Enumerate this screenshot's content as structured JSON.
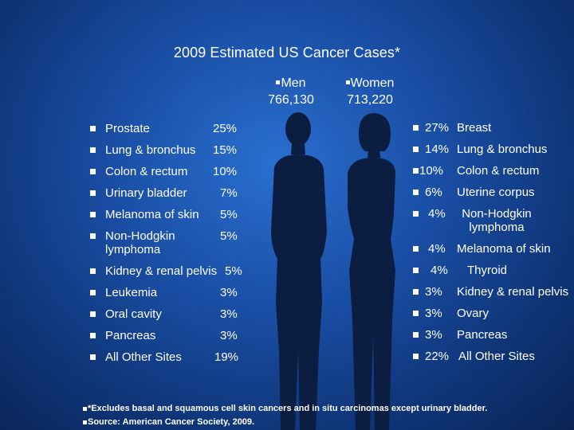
{
  "title": "2009 Estimated US Cancer Cases*",
  "men": {
    "label": "Men",
    "count": "766,130"
  },
  "women": {
    "label": "Women",
    "count": "713,220"
  },
  "men_rows": [
    {
      "site": "Prostate",
      "pct": "25%"
    },
    {
      "site": "Lung & bronchus",
      "pct": "15%"
    },
    {
      "site": "Colon & rectum",
      "pct": "10%"
    },
    {
      "site": "Urinary bladder",
      "pct": "7%"
    },
    {
      "site": "Melanoma of skin",
      "pct": "5%"
    },
    {
      "site": "Non-Hodgkin lymphoma",
      "pct": "5%"
    },
    {
      "site": "Kidney & renal pelvis",
      "pct": "5%"
    },
    {
      "site": "Leukemia",
      "pct": "3%"
    },
    {
      "site": "Oral cavity",
      "pct": "3%"
    },
    {
      "site": "Pancreas",
      "pct": "3%"
    },
    {
      "site": "All Other Sites",
      "pct": "19%"
    }
  ],
  "women_rows": [
    {
      "pct": "27%",
      "site": "Breast"
    },
    {
      "pct": "14%",
      "site": "Lung & bronchus"
    },
    {
      "pct": "10%",
      "site": "Colon & rectum"
    },
    {
      "pct": "6%",
      "site": "Uterine corpus"
    },
    {
      "pct": "4%",
      "site": "Non-Hodgkin lymphoma"
    },
    {
      "pct": "4%",
      "site": "Melanoma of skin"
    },
    {
      "pct": "4%",
      "site": "Thyroid"
    },
    {
      "pct": "3%",
      "site": "Kidney & renal pelvis"
    },
    {
      "pct": "3%",
      "site": "Ovary"
    },
    {
      "pct": "3%",
      "site": "Pancreas"
    },
    {
      "pct": "22%",
      "site": "All Other Sites"
    }
  ],
  "footnotes": [
    "*Excludes basal and squamous cell skin cancers and in situ carcinomas except urinary bladder.",
    "Source: American Cancer Society, 2009."
  ],
  "colors": {
    "background": "#1a4fa6",
    "silhouette": "#0b1d40",
    "text": "#ffffff"
  }
}
